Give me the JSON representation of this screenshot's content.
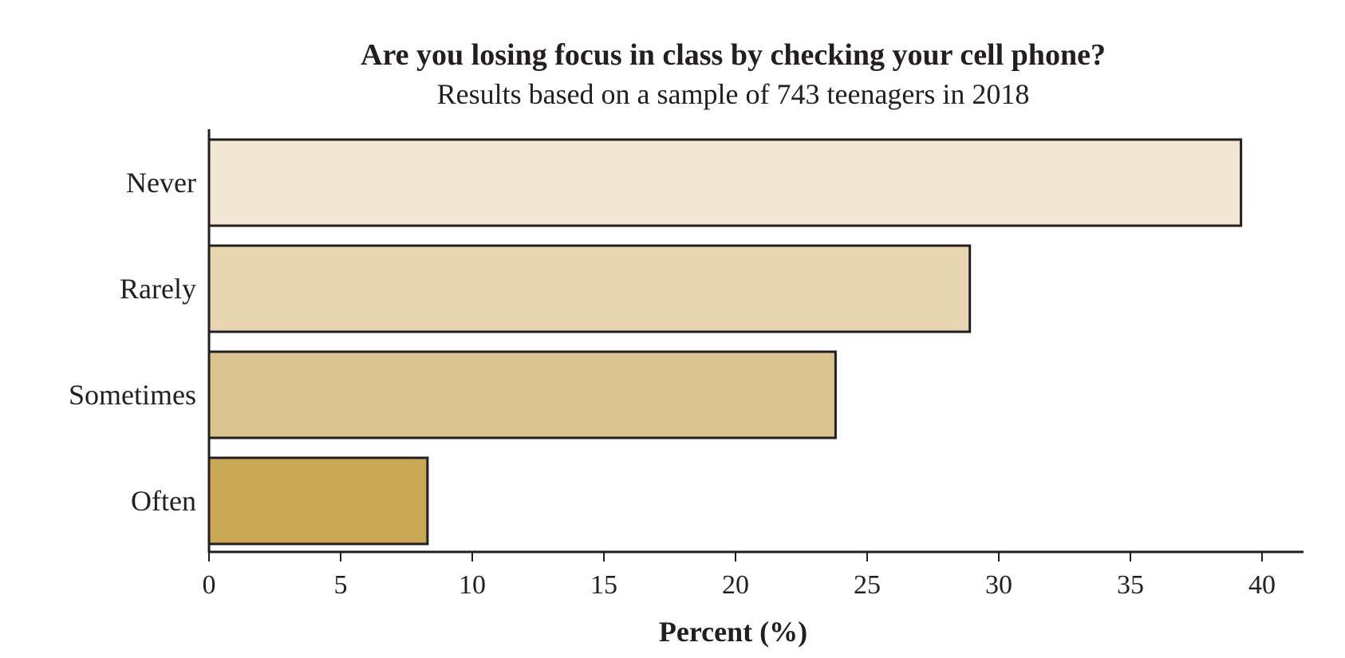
{
  "chart_data": {
    "type": "bar",
    "orientation": "horizontal",
    "title": "Are you losing focus in class by checking your cell phone?",
    "subtitle": "Results based on a sample of 743 teenagers in 2018",
    "xlabel": "Percent (%)",
    "ylabel": "",
    "categories": [
      "Never",
      "Rarely",
      "Sometimes",
      "Often"
    ],
    "values": [
      39.2,
      28.9,
      23.8,
      8.3
    ],
    "xlim": [
      0,
      41.5
    ],
    "xticks": [
      0,
      5,
      10,
      15,
      20,
      25,
      30,
      35,
      40
    ],
    "grid": false,
    "legend": "none",
    "colors": [
      "#f1e6d3",
      "#e8d5b1",
      "#dcc490",
      "#c9a855"
    ],
    "stroke_color": "#231f20"
  }
}
